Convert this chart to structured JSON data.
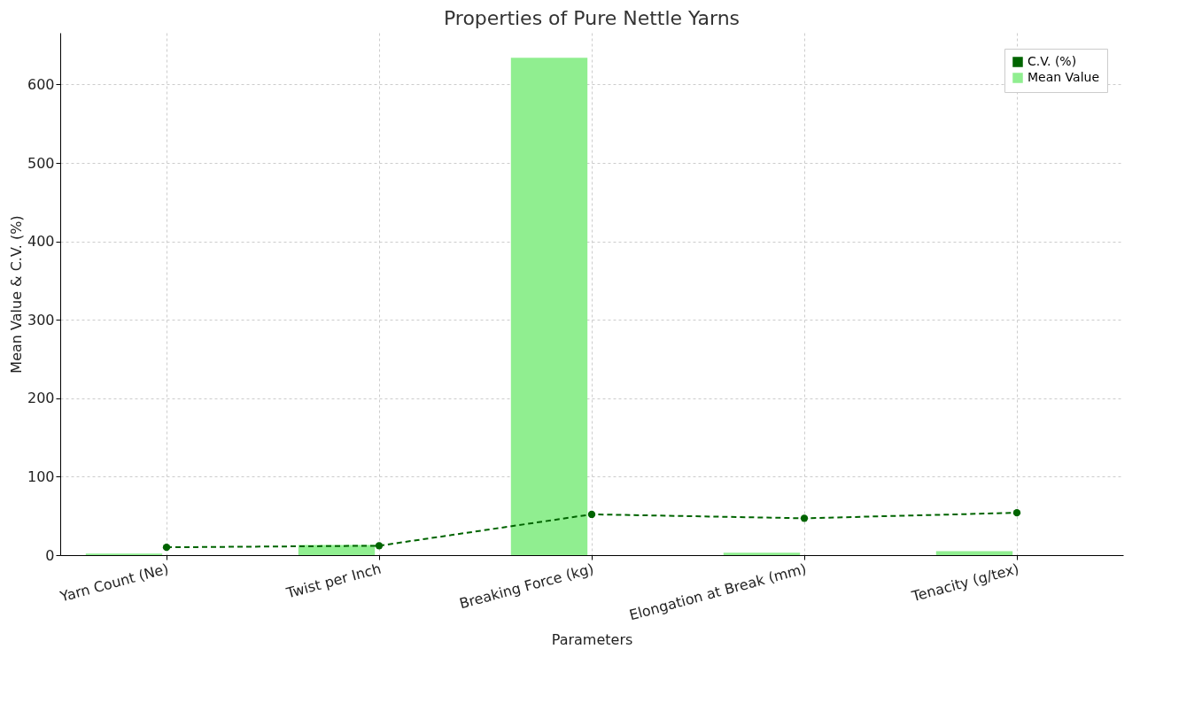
{
  "chart_data": {
    "type": "bar",
    "title": "Properties of Pure Nettle Yarns",
    "xlabel": "Parameters",
    "ylabel": "Mean Value & C.V. (%)",
    "categories": [
      "Yarn Count (Ne)",
      "Twist per Inch",
      "Breaking Force (kg)",
      "Elongation at Break (mm)",
      "Tenacity (g/tex)"
    ],
    "series": [
      {
        "name": "C.V. (%)",
        "type": "line",
        "color": "#006400",
        "values": [
          10,
          12,
          52,
          47,
          54
        ],
        "marker": "circle",
        "line_style": "dashed"
      },
      {
        "name": "Mean Value",
        "color": "#90ee90",
        "values": [
          2,
          13,
          634,
          3,
          5
        ]
      }
    ],
    "ylim": [
      0,
      666
    ],
    "yticks": [
      0,
      100,
      200,
      300,
      400,
      500,
      600
    ],
    "grid": true,
    "legend": "top right"
  }
}
